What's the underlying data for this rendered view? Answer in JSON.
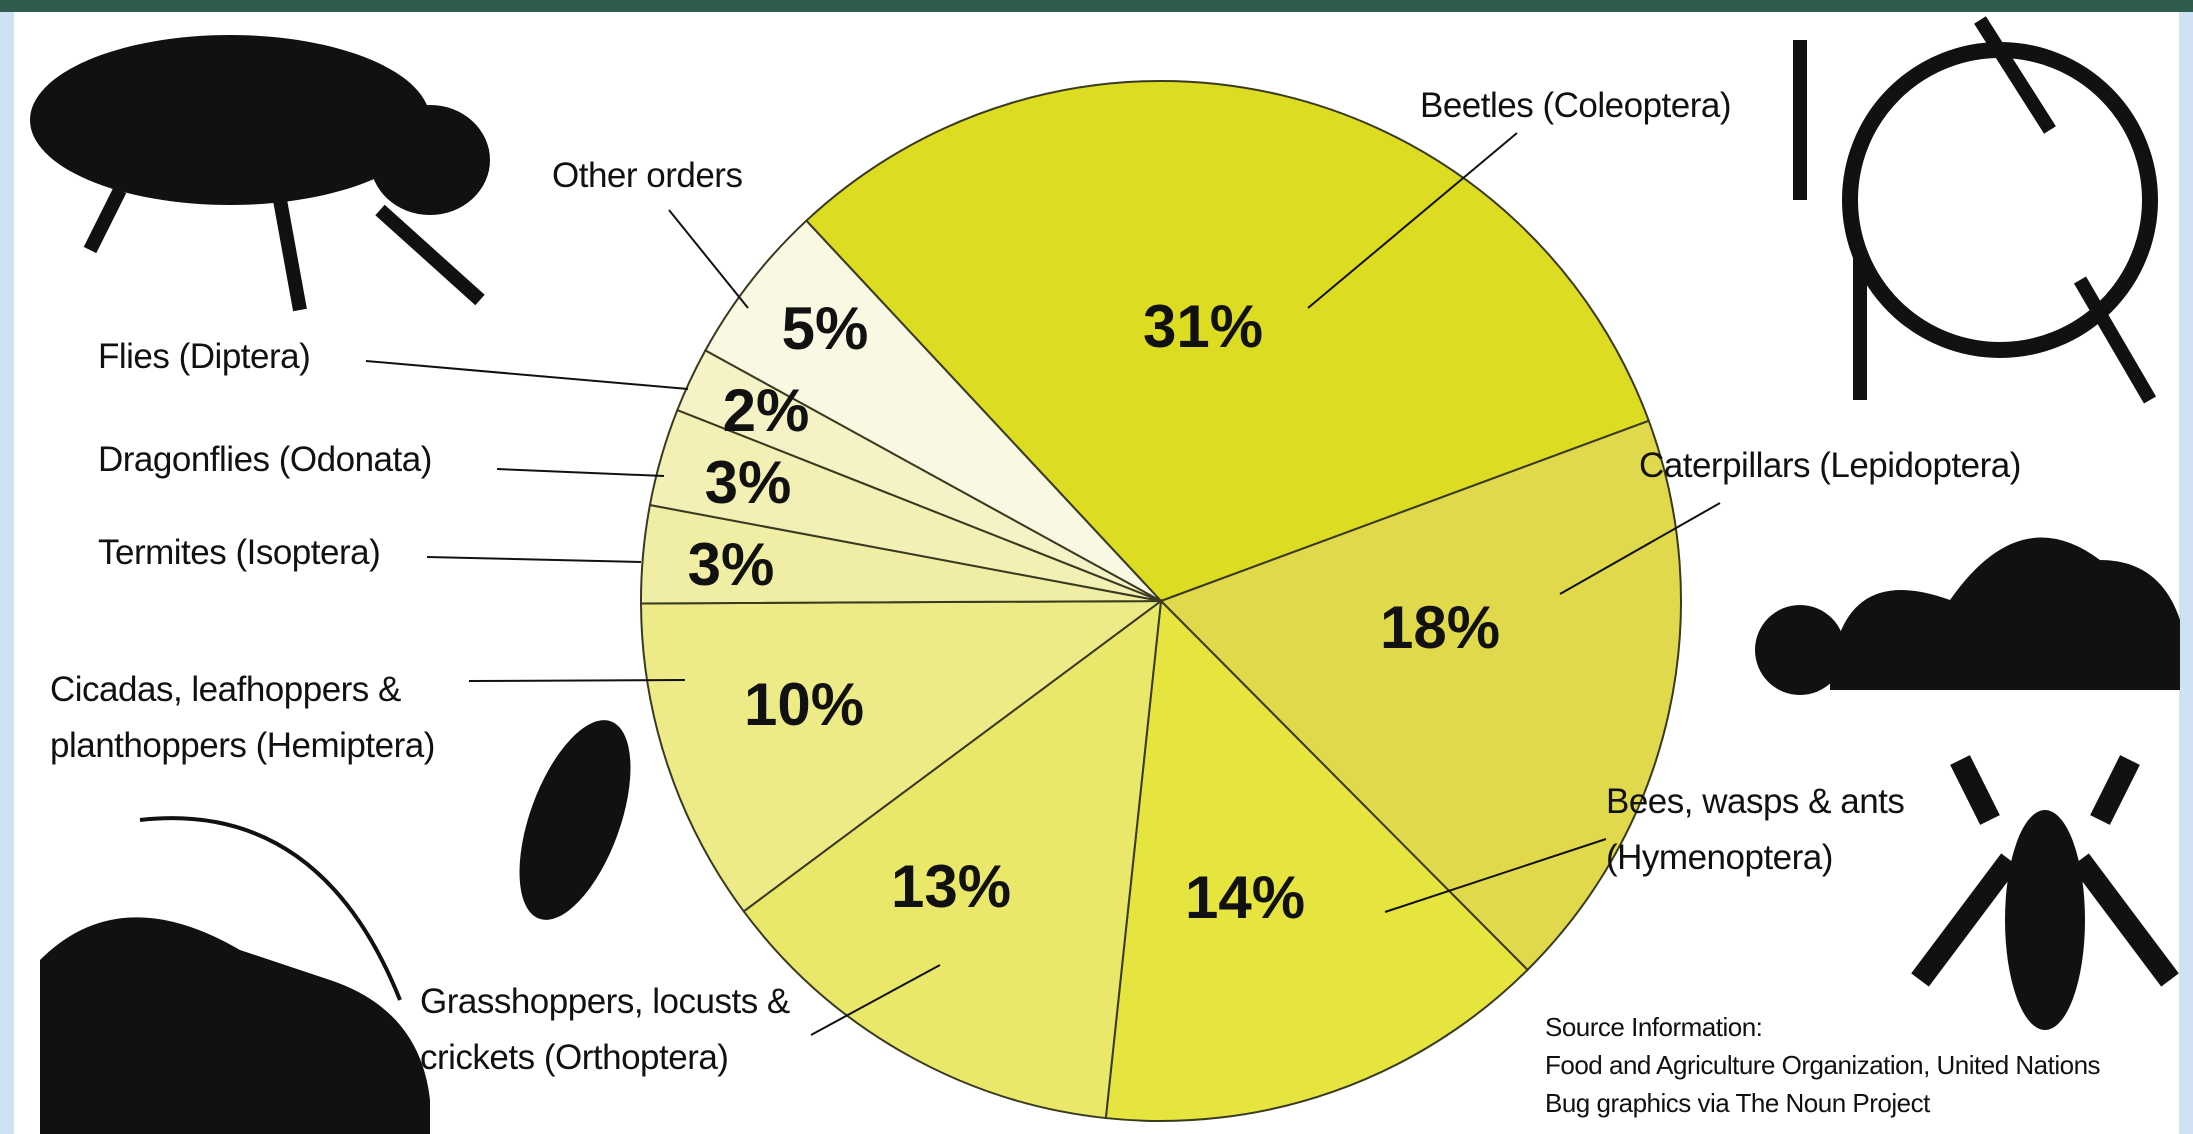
{
  "chart_data": {
    "type": "pie",
    "categories": [
      "Beetles (Coleoptera)",
      "Caterpillars (Lepidoptera)",
      "Bees, wasps & ants\n(Hymenoptera)",
      "Grasshoppers, locusts &\ncrickets (Orthoptera)",
      "Cicadas, leafhoppers &\nplanthoppers (Hemiptera)",
      "Termites (Isoptera)",
      "Dragonflies (Odonata)",
      "Flies (Diptera)",
      "Other orders"
    ],
    "values": [
      31,
      18,
      14,
      13,
      10,
      3,
      3,
      2,
      5
    ],
    "value_labels": [
      "31%",
      "18%",
      "14%",
      "13%",
      "10%",
      "3%",
      "3%",
      "2%",
      "5%"
    ],
    "colors": [
      "#dcdc22",
      "#e0d94c",
      "#e6e43e",
      "#e9e86a",
      "#edeb88",
      "#efeea4",
      "#f2f0b4",
      "#f5f3c6",
      "#f9f8e2"
    ],
    "source": [
      "Source Information:",
      "Food and Agriculture Organization, United Nations",
      "Bug graphics via The Noun Project"
    ]
  }
}
